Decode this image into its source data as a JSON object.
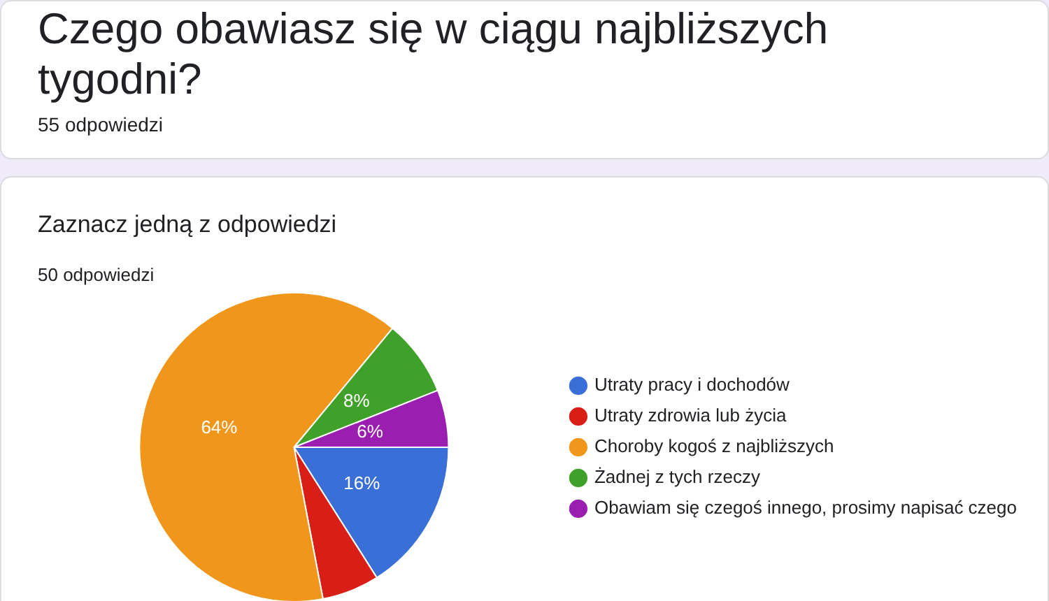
{
  "chart_data": {
    "type": "pie",
    "title": "Czego obawiasz się w ciągu najbliższych tygodni?",
    "subtitle": "Zaznacz jedną z odpowiedzi",
    "annotations": [
      "55 odpowiedzi",
      "50 odpowiedzi"
    ],
    "categories": [
      "Utraty pracy i dochodów",
      "Utraty zdrowia lub życia",
      "Choroby kogoś z najbliższych",
      "Żadnej z tych rzeczy",
      "Obawiam się czegoś innego, prosimy napisać czego"
    ],
    "values": [
      16,
      6,
      64,
      8,
      6
    ],
    "value_labels": [
      "16%",
      null,
      "64%",
      "8%",
      "6%"
    ],
    "colors": [
      "#3a6fd8",
      "#d91e18",
      "#f0961a",
      "#3fa12a",
      "#9a1fb0"
    ],
    "legend": "right"
  }
}
